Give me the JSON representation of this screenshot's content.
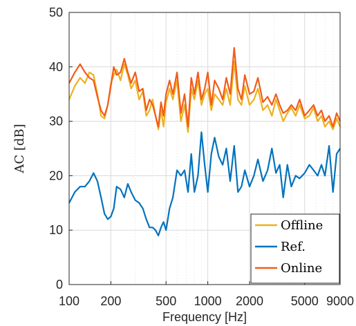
{
  "chart_data": {
    "type": "line",
    "xlabel": "Frequency [Hz]",
    "ylabel": "AC [dB]",
    "x_scale": "log",
    "xlim": [
      100,
      9000
    ],
    "ylim": [
      0,
      50
    ],
    "xticks": [
      100,
      200,
      500,
      1000,
      2000,
      5000,
      9000
    ],
    "xtick_labels": [
      "100",
      "200",
      "500",
      "1000",
      "2000",
      "5000",
      "9000"
    ],
    "yticks": [
      0,
      10,
      20,
      30,
      40,
      50
    ],
    "ytick_labels": [
      "0",
      "10",
      "20",
      "30",
      "40",
      "50"
    ],
    "grid": true,
    "legend_position": "bottom-right",
    "series": [
      {
        "name": "Offline",
        "color": "#EDB120",
        "x": [
          100,
          110,
          120,
          130,
          140,
          150,
          160,
          170,
          180,
          190,
          200,
          210,
          220,
          235,
          250,
          265,
          280,
          300,
          320,
          340,
          360,
          380,
          400,
          420,
          440,
          460,
          480,
          500,
          530,
          560,
          600,
          640,
          680,
          720,
          760,
          800,
          850,
          900,
          950,
          1000,
          1060,
          1120,
          1200,
          1280,
          1360,
          1450,
          1550,
          1650,
          1750,
          1850,
          2000,
          2150,
          2300,
          2500,
          2700,
          2900,
          3100,
          3300,
          3500,
          3750,
          4000,
          4300,
          4600,
          5000,
          5400,
          5800,
          6200,
          6600,
          7000,
          7500,
          8000,
          8500,
          9000
        ],
        "y": [
          34,
          36.5,
          38,
          37,
          39,
          38.5,
          35,
          31,
          30.5,
          33,
          37,
          38.5,
          39.5,
          37.5,
          40.5,
          38.5,
          36,
          37.5,
          34,
          35.5,
          31,
          32,
          34,
          31,
          28.5,
          32,
          29,
          33.5,
          36,
          34,
          37.5,
          30,
          33,
          28,
          36,
          34,
          37.5,
          33,
          35,
          36,
          32,
          35,
          34,
          33,
          36,
          33,
          41,
          34,
          33,
          36.5,
          33,
          34,
          36,
          32,
          33,
          31,
          34,
          32,
          30,
          31.5,
          32.5,
          31,
          33,
          30.5,
          31,
          32.5,
          30,
          31,
          29,
          30,
          28.5,
          30.5,
          29
        ]
      },
      {
        "name": "Ref.",
        "color": "#0072BD",
        "x": [
          100,
          110,
          120,
          130,
          140,
          150,
          160,
          170,
          180,
          190,
          200,
          210,
          220,
          235,
          250,
          265,
          280,
          300,
          320,
          340,
          360,
          380,
          400,
          420,
          440,
          460,
          480,
          500,
          530,
          560,
          600,
          640,
          680,
          720,
          760,
          800,
          850,
          900,
          950,
          1000,
          1060,
          1120,
          1200,
          1280,
          1360,
          1450,
          1550,
          1650,
          1750,
          1850,
          2000,
          2150,
          2300,
          2500,
          2700,
          2900,
          3100,
          3300,
          3500,
          3750,
          4000,
          4300,
          4600,
          5000,
          5400,
          5800,
          6200,
          6600,
          7000,
          7500,
          8000,
          8500,
          9000
        ],
        "y": [
          15,
          17,
          18,
          18,
          19,
          20.5,
          19,
          16,
          13,
          12,
          12.5,
          14,
          18,
          17.5,
          16,
          18.5,
          17,
          15.5,
          15,
          14,
          12,
          10.5,
          10.5,
          10,
          9,
          10.5,
          11.5,
          10,
          14,
          16,
          21,
          20,
          21,
          17,
          24,
          17,
          20,
          28,
          22,
          17,
          24,
          27,
          23.5,
          22,
          25,
          19,
          25.5,
          17,
          18,
          21,
          18,
          20,
          23,
          19,
          21,
          25,
          20.5,
          22,
          16,
          22,
          18,
          20,
          19.5,
          20.5,
          22,
          21,
          20,
          22,
          20,
          25.5,
          17,
          24,
          25
        ]
      },
      {
        "name": "Online",
        "color": "#F25C19",
        "x": [
          100,
          110,
          120,
          130,
          140,
          150,
          160,
          170,
          180,
          190,
          200,
          210,
          220,
          235,
          250,
          265,
          280,
          300,
          320,
          340,
          360,
          380,
          400,
          420,
          440,
          460,
          480,
          500,
          530,
          560,
          600,
          640,
          680,
          720,
          760,
          800,
          850,
          900,
          950,
          1000,
          1060,
          1120,
          1200,
          1280,
          1360,
          1450,
          1550,
          1650,
          1750,
          1850,
          2000,
          2150,
          2300,
          2500,
          2700,
          2900,
          3100,
          3300,
          3500,
          3750,
          4000,
          4300,
          4600,
          5000,
          5400,
          5800,
          6200,
          6600,
          7000,
          7500,
          8000,
          8500,
          9000
        ],
        "y": [
          37,
          39,
          40.5,
          39,
          38,
          37.5,
          34.5,
          32,
          31,
          33,
          36.5,
          40,
          38.5,
          39,
          41.5,
          39,
          37,
          39,
          35.5,
          36,
          32,
          34,
          33,
          31,
          29,
          33.5,
          31,
          35,
          37.5,
          35,
          39,
          31.5,
          35,
          29,
          38,
          35,
          39,
          34,
          36,
          39,
          33,
          37.5,
          36,
          34,
          38,
          35,
          43.5,
          36,
          34,
          38.5,
          35,
          35.5,
          38,
          33.5,
          34.5,
          33,
          35,
          33,
          31.5,
          32,
          33,
          32,
          34,
          31,
          32,
          33,
          31,
          32,
          30,
          31,
          29,
          31.5,
          30
        ]
      }
    ]
  }
}
